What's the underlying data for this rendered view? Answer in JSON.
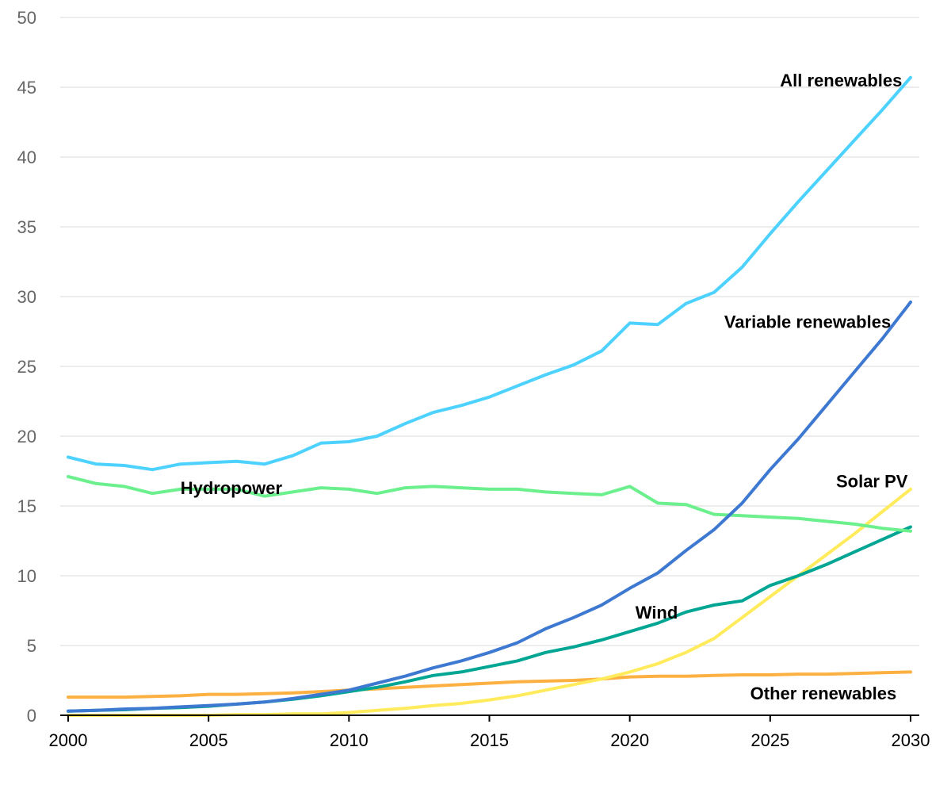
{
  "chart_data": {
    "type": "line",
    "title": "",
    "xlabel": "",
    "ylabel": "",
    "x": [
      2000,
      2001,
      2002,
      2003,
      2004,
      2005,
      2006,
      2007,
      2008,
      2009,
      2010,
      2011,
      2012,
      2013,
      2014,
      2015,
      2016,
      2017,
      2018,
      2019,
      2020,
      2021,
      2022,
      2023,
      2024,
      2025,
      2026,
      2027,
      2028,
      2029,
      2030
    ],
    "xlim": [
      2000,
      2030
    ],
    "ylim": [
      0,
      50
    ],
    "x_ticks": [
      "2000",
      "2005",
      "2010",
      "2015",
      "2020",
      "2025",
      "2030"
    ],
    "y_ticks": [
      "0",
      "5",
      "10",
      "15",
      "20",
      "25",
      "30",
      "35",
      "40",
      "45",
      "50"
    ],
    "grid": true,
    "legend": "inline labels",
    "series": [
      {
        "name": "Other renewables",
        "color": "#fbb041",
        "label_year": 2029.5,
        "label_value": 1.6,
        "values": [
          1.3,
          1.3,
          1.3,
          1.35,
          1.4,
          1.5,
          1.5,
          1.55,
          1.6,
          1.7,
          1.8,
          1.9,
          2.0,
          2.1,
          2.2,
          2.3,
          2.4,
          2.45,
          2.5,
          2.6,
          2.75,
          2.8,
          2.8,
          2.85,
          2.9,
          2.9,
          2.95,
          2.95,
          3.0,
          3.05,
          3.1
        ]
      },
      {
        "name": "Solar PV",
        "color": "#ffeb5b",
        "label_year": 2029.9,
        "label_value": 16.8,
        "values": [
          0.0,
          0.0,
          0.0,
          0.0,
          0.0,
          0.0,
          0.05,
          0.05,
          0.1,
          0.1,
          0.2,
          0.35,
          0.5,
          0.7,
          0.85,
          1.1,
          1.4,
          1.8,
          2.2,
          2.6,
          3.1,
          3.7,
          4.5,
          5.5,
          7.0,
          8.5,
          10.0,
          11.5,
          13.0,
          14.6,
          16.2
        ]
      },
      {
        "name": "Wind",
        "color": "#00a693",
        "label_year": 2020.2,
        "label_value": 7.4,
        "values": [
          0.3,
          0.35,
          0.4,
          0.5,
          0.55,
          0.65,
          0.8,
          0.95,
          1.15,
          1.4,
          1.7,
          2.0,
          2.4,
          2.85,
          3.1,
          3.5,
          3.9,
          4.5,
          4.9,
          5.4,
          6.0,
          6.6,
          7.4,
          7.9,
          8.2,
          9.3,
          10.0,
          10.8,
          11.7,
          12.6,
          13.5
        ]
      },
      {
        "name": "Hydropower",
        "color": "#6cef8d",
        "label_year": 2004.0,
        "label_value": 16.3,
        "values": [
          17.1,
          16.6,
          16.4,
          15.9,
          16.2,
          16.2,
          16.2,
          15.7,
          16.0,
          16.3,
          16.2,
          15.9,
          16.3,
          16.4,
          16.3,
          16.2,
          16.2,
          16.0,
          15.9,
          15.8,
          16.4,
          15.2,
          15.1,
          14.4,
          14.3,
          14.2,
          14.1,
          13.9,
          13.7,
          13.4,
          13.2
        ]
      },
      {
        "name": "Variable renewables",
        "color": "#3e79d1",
        "label_year": 2029.3,
        "label_value": 28.2,
        "values": [
          0.3,
          0.35,
          0.45,
          0.5,
          0.6,
          0.7,
          0.8,
          0.95,
          1.2,
          1.5,
          1.8,
          2.3,
          2.8,
          3.4,
          3.9,
          4.5,
          5.2,
          6.2,
          7.0,
          7.9,
          9.1,
          10.2,
          11.8,
          13.3,
          15.2,
          17.6,
          19.8,
          22.2,
          24.6,
          27.0,
          29.6
        ]
      },
      {
        "name": "All renewables",
        "color": "#4dd2ff",
        "label_year": 2029.7,
        "label_value": 45.5,
        "values": [
          18.5,
          18.0,
          17.9,
          17.6,
          18.0,
          18.1,
          18.2,
          18.0,
          18.6,
          19.5,
          19.6,
          20.0,
          20.9,
          21.7,
          22.2,
          22.8,
          23.6,
          24.4,
          25.1,
          26.1,
          28.1,
          28.0,
          29.5,
          30.3,
          32.1,
          34.5,
          36.8,
          39.0,
          41.2,
          43.4,
          45.7
        ]
      }
    ]
  }
}
